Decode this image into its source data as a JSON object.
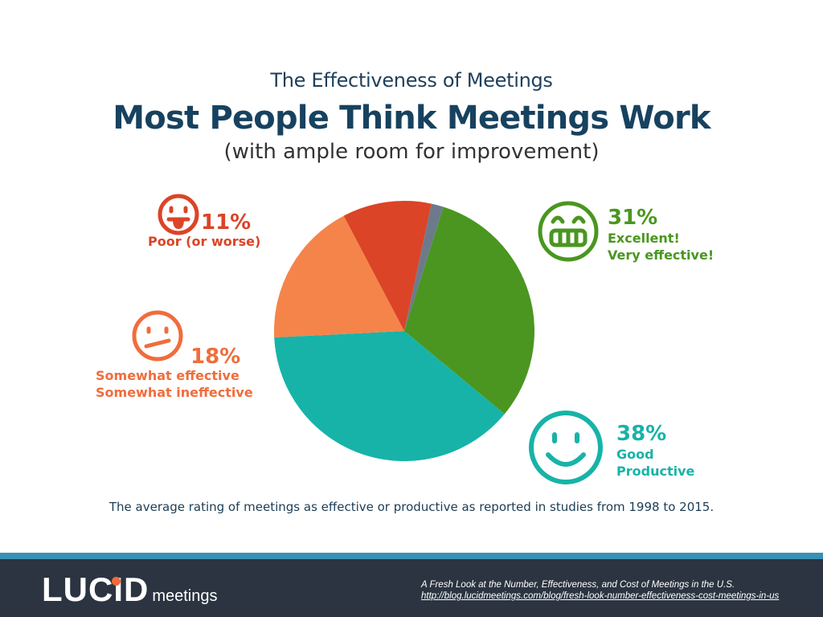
{
  "header": {
    "subtitle": "The Effectiveness of Meetings",
    "title": "Most People Think Meetings Work",
    "note": "(with ample room for improvement)"
  },
  "chart_data": {
    "type": "pie",
    "slices": [
      {
        "label": "Excellent! Very effective!",
        "value": 31,
        "pct_label": "31%",
        "lines": [
          "Excellent!",
          "Very effective!"
        ],
        "color": "#4a9620",
        "icon": "grin-face-icon"
      },
      {
        "label": "Good Productive",
        "value": 38,
        "pct_label": "38%",
        "lines": [
          "Good",
          "Productive"
        ],
        "color": "#17b3a8",
        "icon": "smile-face-icon"
      },
      {
        "label": "Somewhat effective Somewhat ineffective",
        "value": 18,
        "pct_label": "18%",
        "lines": [
          "Somewhat effective",
          "Somewhat ineffective"
        ],
        "color": "#f5844a",
        "icon": "meh-face-icon"
      },
      {
        "label": "Poor (or worse)",
        "value": 11,
        "pct_label": "11%",
        "lines": [
          "Poor (or worse)"
        ],
        "color": "#db4427",
        "icon": "tongue-face-icon"
      },
      {
        "label": "",
        "value": 1.5,
        "color": "#6d7a8c"
      }
    ]
  },
  "caption": "The average rating of  meetings as effective or productive as reported in studies from 1998 to 2015.",
  "footer": {
    "logo_word": "LUCID",
    "logo_sub": "meetings",
    "source_title": "A Fresh Look at the Number, Effectiveness, and Cost of Meetings in the U.S.",
    "source_url": "http://blog.lucidmeetings.com/blog/fresh-look-number-effectiveness-cost-meetings-in-us"
  },
  "colors": {
    "title": "#17425f",
    "footer_bg": "#2b3440",
    "footer_stripe": "#3a90b4",
    "logo_dot": "#f06a3a"
  }
}
